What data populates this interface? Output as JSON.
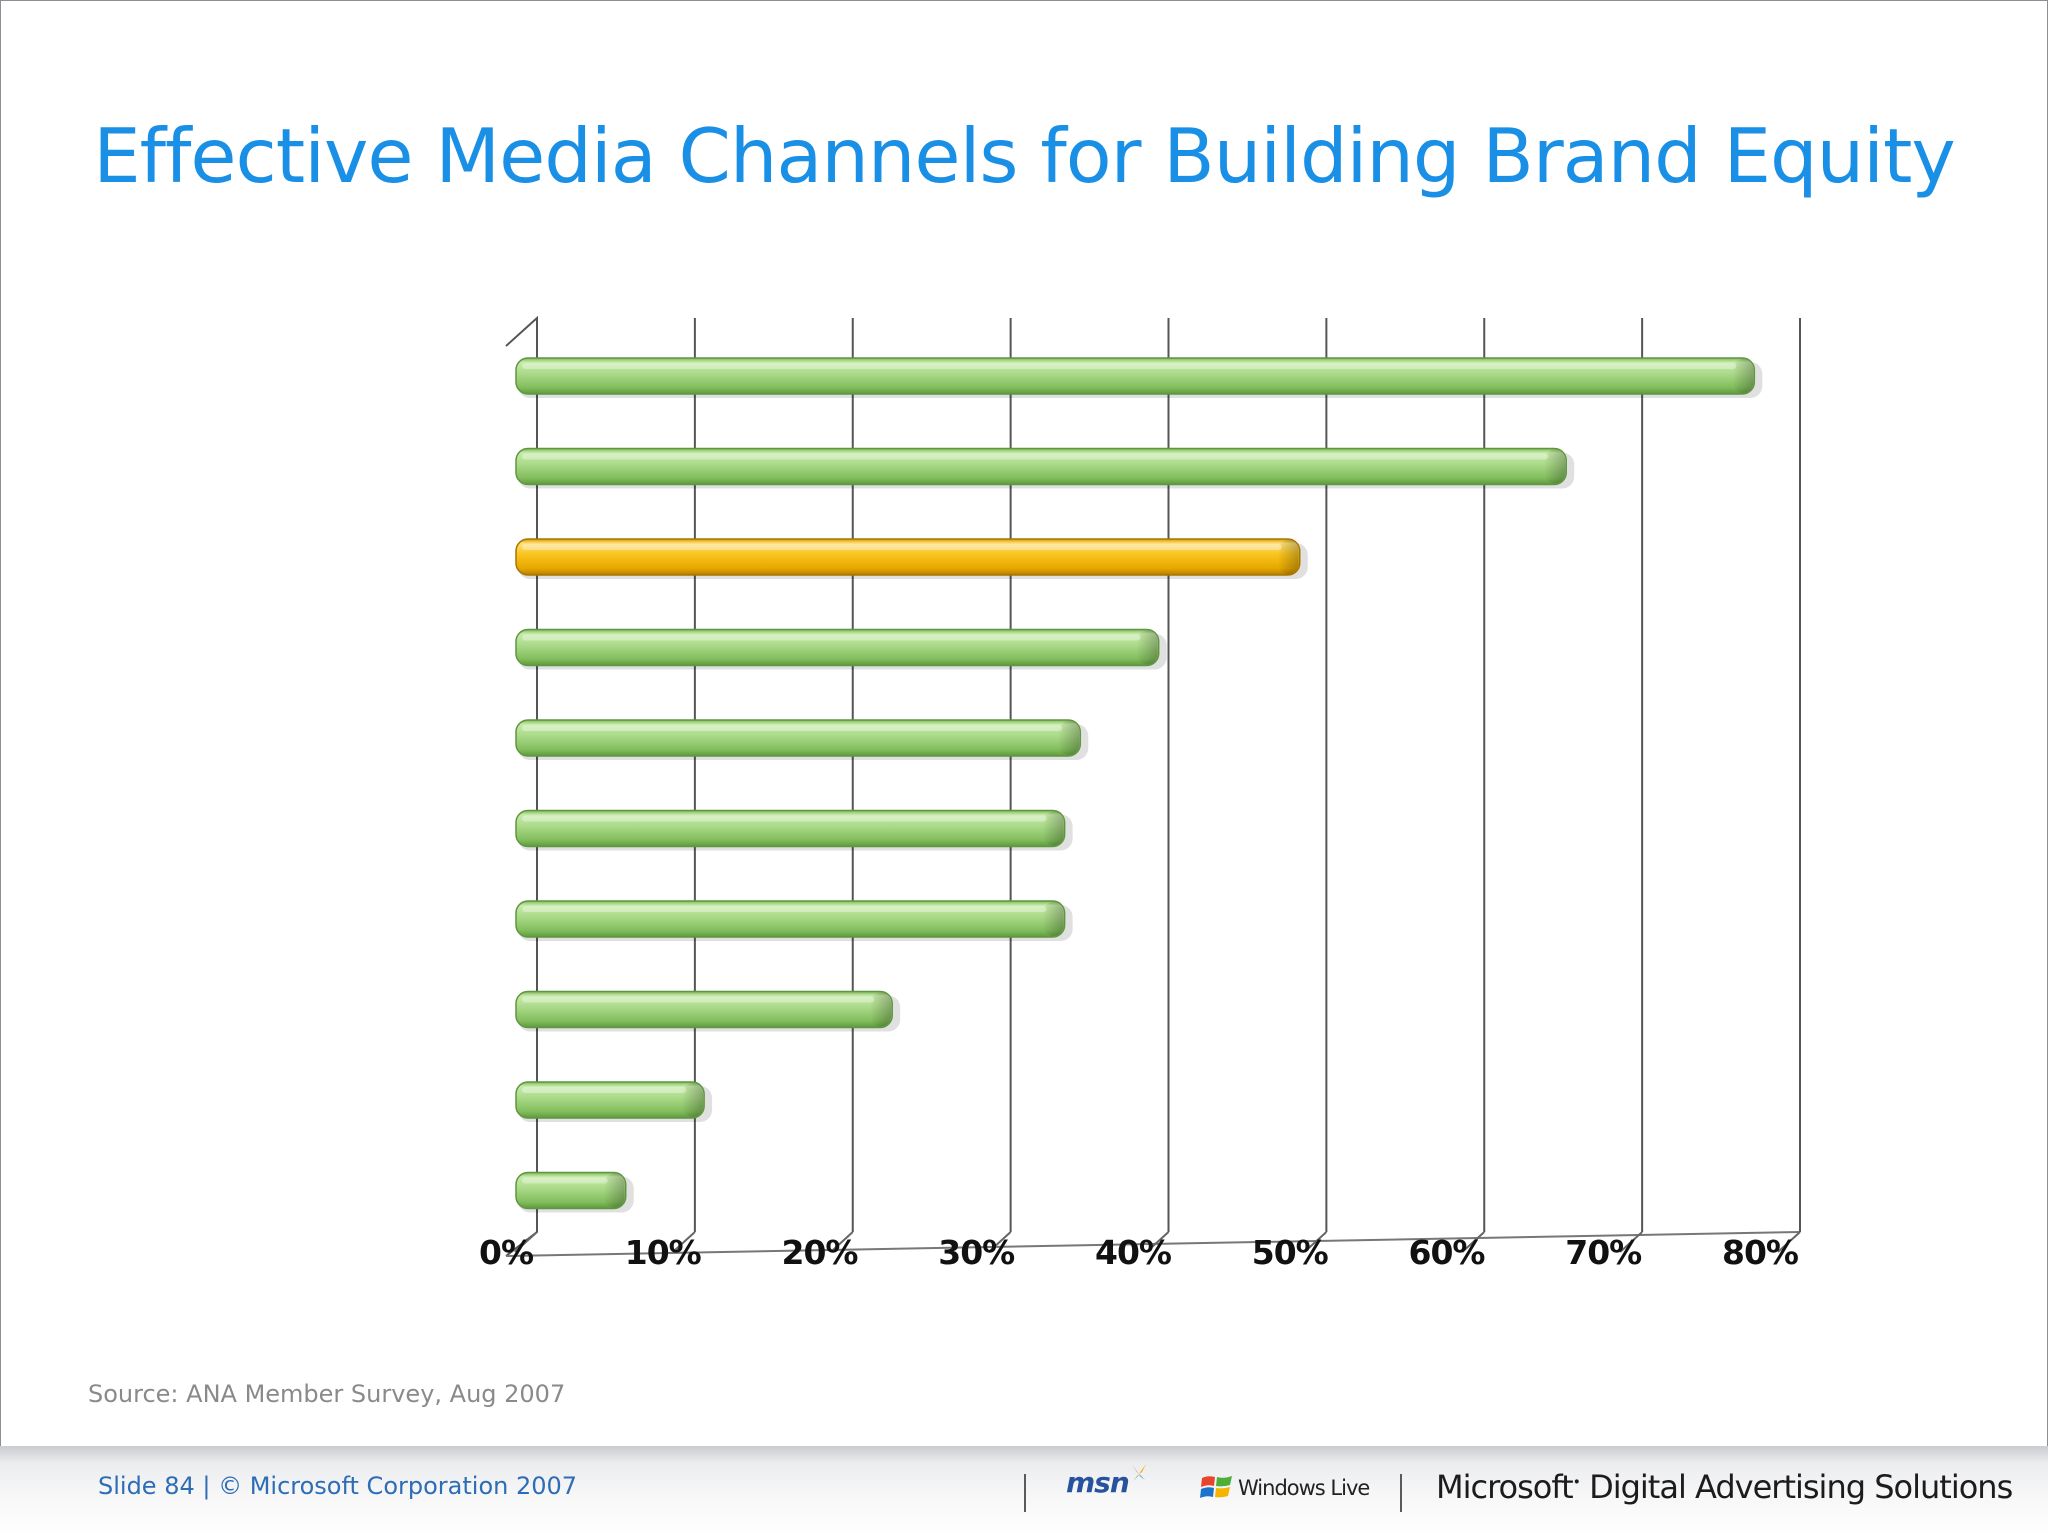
{
  "slide": {
    "title": "Effective Media Channels for Building Brand Equity",
    "source": "Source: ANA Member Survey, Aug 2007"
  },
  "footer": {
    "slide_info": "Slide 84 | © Microsoft Corporation 2007",
    "logo_msn": "msn",
    "logo_windows_live": "Windows Live",
    "logo_microsoft": "Microsoft",
    "logo_mdas": "Digital Advertising Solutions"
  },
  "colors": {
    "title": "#1a8fe6",
    "bar_green": "#a9d987",
    "bar_highlight": "#f5b800"
  },
  "chart_data": {
    "type": "bar",
    "orientation": "horizontal",
    "categories": [
      "",
      "",
      "",
      "",
      "",
      "",
      "",
      "",
      "",
      ""
    ],
    "values": [
      79,
      67,
      50,
      41,
      36,
      35,
      35,
      24,
      12,
      7
    ],
    "highlight_index": 2,
    "xlim": [
      0,
      80
    ],
    "xticks": [
      "0%",
      "10%",
      "20%",
      "30%",
      "40%",
      "50%",
      "60%",
      "70%",
      "80%"
    ],
    "grid": true,
    "legend": "none",
    "title": "",
    "xlabel": "",
    "ylabel": ""
  }
}
